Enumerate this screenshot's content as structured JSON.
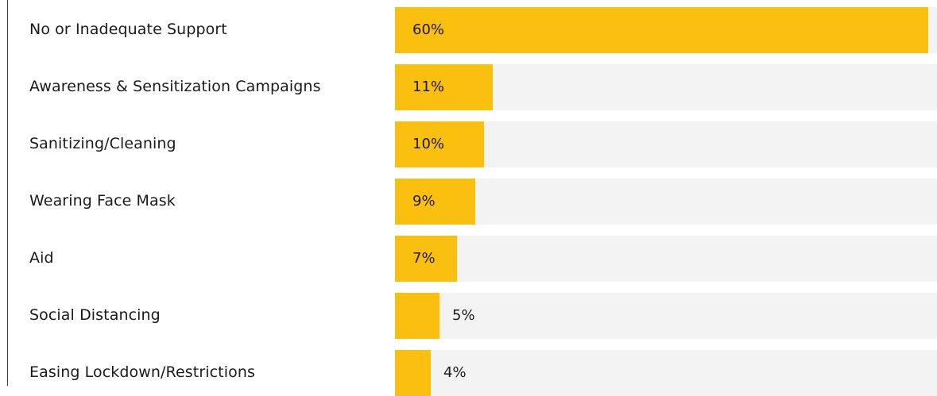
{
  "chart_data": {
    "type": "bar",
    "orientation": "horizontal",
    "categories": [
      "No or Inadequate Support",
      "Awareness & Sensitization Campaigns",
      "Sanitizing/Cleaning",
      "Wearing Face Mask",
      "Aid",
      "Social Distancing",
      "Easing Lockdown/Restrictions"
    ],
    "values": [
      60,
      11,
      10,
      9,
      7,
      5,
      4
    ],
    "value_labels": [
      "60%",
      "11%",
      "10%",
      "9%",
      "7%",
      "5%",
      "4%"
    ],
    "xlim": [
      0,
      61
    ],
    "unit": "%",
    "bar_color": "#fbbf0f",
    "track_color": "#f3f3f3",
    "grid": false,
    "legend": "none"
  }
}
